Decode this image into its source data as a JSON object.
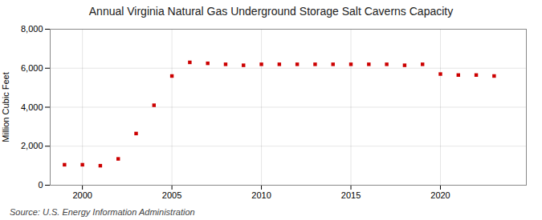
{
  "chart_data": {
    "type": "scatter",
    "title": "Annual Virginia Natural Gas Underground Storage Salt Caverns Capacity",
    "ylabel": "Million Cubic Feet",
    "source": "Source: U.S. Energy Information Administration",
    "x": [
      1999,
      2000,
      2001,
      2002,
      2003,
      2004,
      2005,
      2006,
      2007,
      2008,
      2009,
      2010,
      2011,
      2012,
      2013,
      2014,
      2015,
      2016,
      2017,
      2018,
      2019,
      2020,
      2021,
      2022,
      2023
    ],
    "values": [
      1050,
      1050,
      1000,
      1350,
      2650,
      4100,
      5600,
      6300,
      6250,
      6200,
      6150,
      6200,
      6200,
      6200,
      6200,
      6200,
      6200,
      6200,
      6200,
      6150,
      6200,
      5700,
      5650,
      5650,
      5600
    ],
    "color": "#cc0000",
    "marker": "square",
    "xlim": [
      1998.2,
      2024.8
    ],
    "xticks": [
      2000,
      2005,
      2010,
      2015,
      2020
    ],
    "ylim": [
      0,
      8000
    ],
    "yticks": [
      0,
      {
        "value": 2000,
        "label": "2,000"
      },
      {
        "value": 4000,
        "label": "4,000"
      },
      {
        "value": 6000,
        "label": "6,000"
      },
      {
        "value": 8000,
        "label": "8,000"
      }
    ],
    "grid": true
  }
}
